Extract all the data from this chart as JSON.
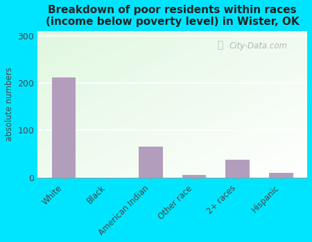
{
  "title": "Breakdown of poor residents within races\n(income below poverty level) in Wister, OK",
  "categories": [
    "White",
    "Black",
    "American Indian",
    "Other race",
    "2+ races",
    "Hispanic"
  ],
  "values": [
    212,
    0,
    65,
    5,
    38,
    10
  ],
  "bar_color": "#b39dbd",
  "ylabel": "absolute numbers",
  "yticks": [
    0,
    100,
    200,
    300
  ],
  "ylim": [
    0,
    310
  ],
  "bg_outer": "#00e5ff",
  "title_fontsize": 11,
  "watermark": "City-Data.com"
}
